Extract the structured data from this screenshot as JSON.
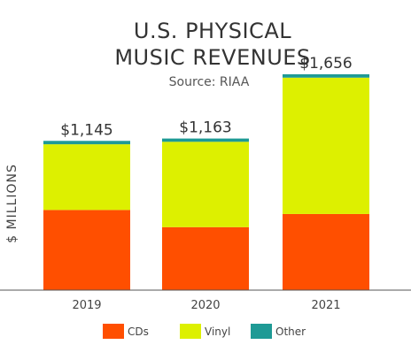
{
  "chart_data": {
    "type": "bar",
    "stacked": true,
    "title_lines": [
      "U.S. PHYSICAL",
      "MUSIC REVENUES"
    ],
    "subtitle": "Source: RIAA",
    "xlabel": "",
    "ylabel": "$ MILLIONS",
    "categories": [
      "2019",
      "2020",
      "2021"
    ],
    "totals": [
      1145,
      1163,
      1656
    ],
    "total_labels": [
      "$1,145",
      "$1,163",
      "$1,656"
    ],
    "ylim": [
      0,
      1900
    ],
    "grid": false,
    "legend_position": "bottom",
    "series": [
      {
        "name": "CDs",
        "color": "#ff4f00",
        "values": [
          615,
          483,
          584
        ]
      },
      {
        "name": "Vinyl",
        "color": "#ddf000",
        "values": [
          504,
          655,
          1046
        ]
      },
      {
        "name": "Other",
        "color": "#1e9a95",
        "values": [
          26,
          25,
          26
        ]
      }
    ]
  }
}
